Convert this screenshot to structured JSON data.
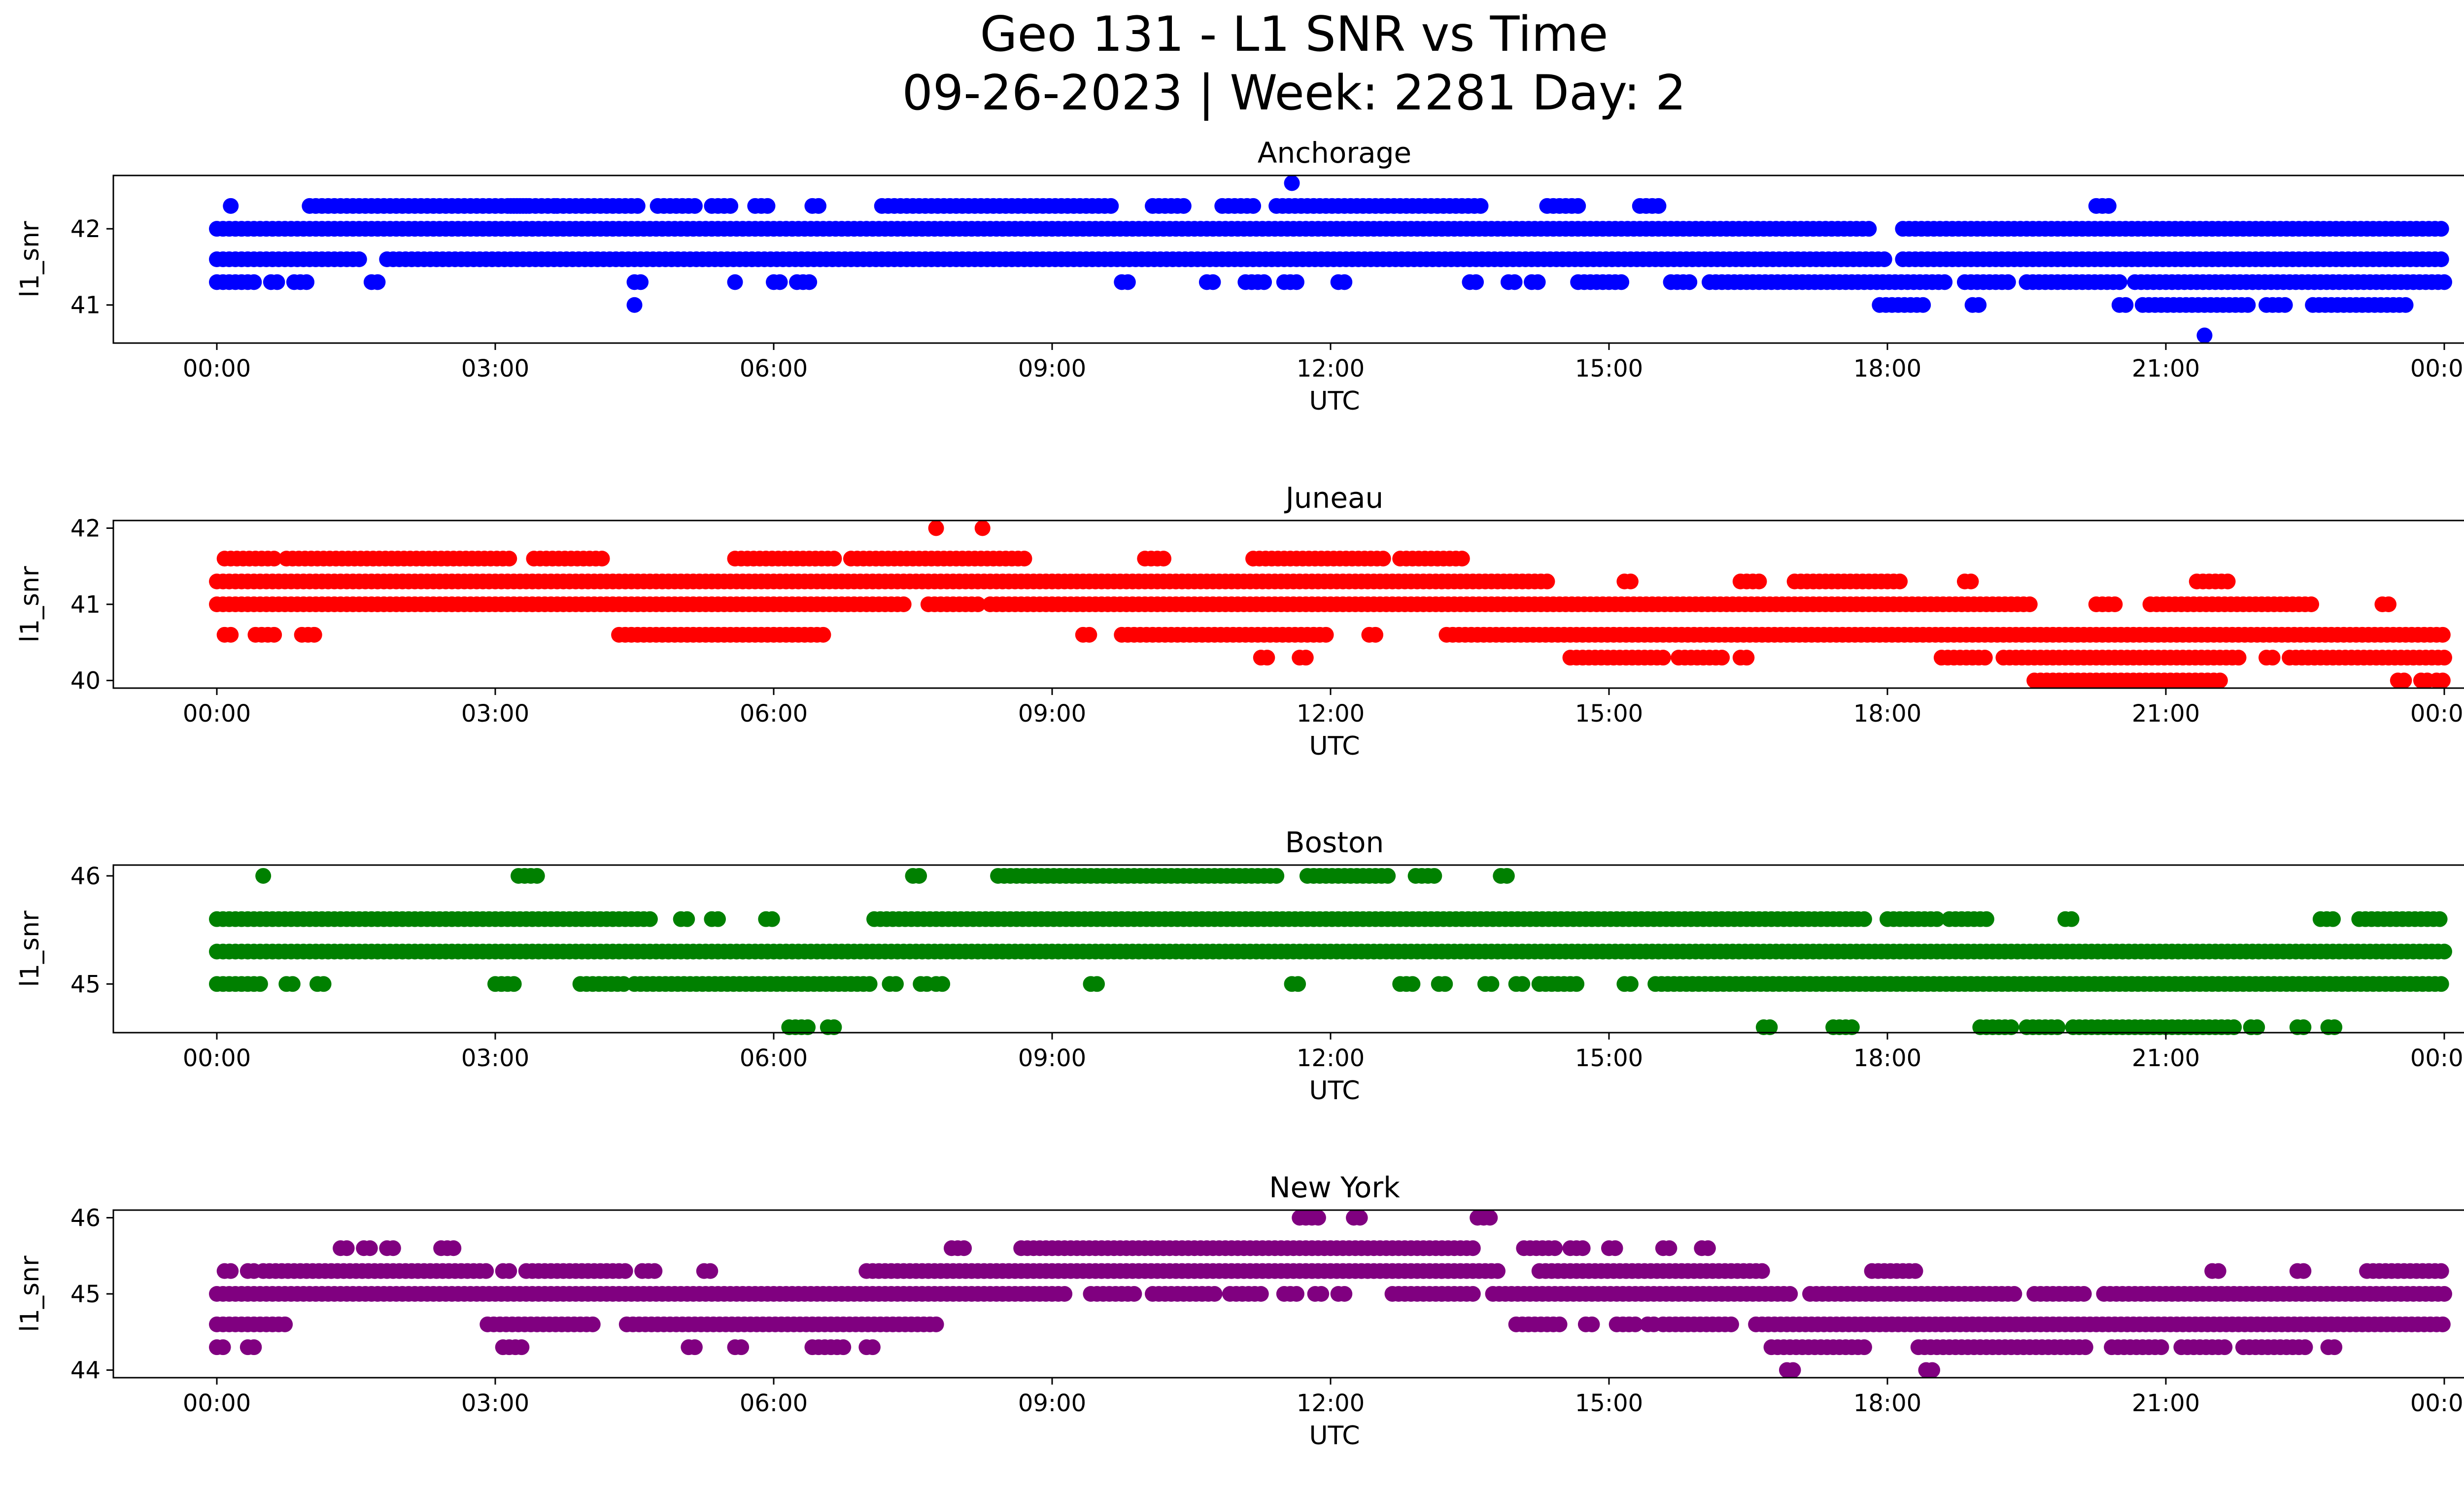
{
  "figure": {
    "title_line1": "Geo 131 - L1 SNR vs Time",
    "title_line2": "09-26-2023 | Week: 2281 Day: 2"
  },
  "chart_data": [
    {
      "type": "scatter",
      "title": "Anchorage",
      "xlabel": "UTC",
      "ylabel": "l1_snr",
      "color": "#0000ff",
      "xlim": [
        "2023-09-26 00:00",
        "2023-09-27 00:00"
      ],
      "x_ticks": [
        "00:00",
        "03:00",
        "06:00",
        "09:00",
        "12:00",
        "15:00",
        "18:00",
        "21:00",
        "00:00"
      ],
      "ylim": [
        40.5,
        42.7
      ],
      "y_ticks": [
        41,
        42
      ],
      "bands": [
        {
          "y": 42.3,
          "ranges": [
            [
              "00:09",
              "00:12"
            ],
            [
              "01:00",
              "03:20"
            ],
            [
              "03:10",
              "03:40"
            ],
            [
              "03:40",
              "04:35"
            ],
            [
              "04:45",
              "05:10"
            ],
            [
              "05:20",
              "05:35"
            ],
            [
              "05:48",
              "05:58"
            ],
            [
              "06:25",
              "06:30"
            ],
            [
              "07:10",
              "09:40"
            ],
            [
              "10:05",
              "10:25"
            ],
            [
              "10:50",
              "11:10"
            ],
            [
              "11:25",
              "13:40"
            ],
            [
              "14:20",
              "14:40"
            ],
            [
              "15:20",
              "15:35"
            ],
            [
              "20:15",
              "20:25"
            ]
          ]
        },
        {
          "y": 42.0,
          "ranges": [
            [
              "00:00",
              "17:50"
            ],
            [
              "18:10",
              "24:00"
            ]
          ]
        },
        {
          "y": 41.6,
          "ranges": [
            [
              "00:00",
              "01:35"
            ],
            [
              "01:50",
              "18:00"
            ],
            [
              "18:10",
              "24:00"
            ]
          ]
        },
        {
          "y": 41.3,
          "ranges": [
            [
              "00:00",
              "00:25"
            ],
            [
              "00:35",
              "00:40"
            ],
            [
              "00:50",
              "01:00"
            ],
            [
              "01:40",
              "01:45"
            ],
            [
              "04:30",
              "04:35"
            ],
            [
              "05:35",
              "05:38"
            ],
            [
              "06:00",
              "06:05"
            ],
            [
              "06:15",
              "06:25"
            ],
            [
              "09:45",
              "09:50"
            ],
            [
              "10:40",
              "10:45"
            ],
            [
              "11:05",
              "11:20"
            ],
            [
              "11:30",
              "11:40"
            ],
            [
              "12:05",
              "12:10"
            ],
            [
              "13:30",
              "13:35"
            ],
            [
              "13:55",
              "14:00"
            ],
            [
              "14:10",
              "14:15"
            ],
            [
              "14:40",
              "15:10"
            ],
            [
              "15:40",
              "15:55"
            ],
            [
              "16:05",
              "18:40"
            ],
            [
              "18:50",
              "19:20"
            ],
            [
              "19:30",
              "20:30"
            ],
            [
              "20:40",
              "24:00"
            ]
          ]
        },
        {
          "y": 41.0,
          "ranges": [
            [
              "04:30",
              "04:33"
            ],
            [
              "17:55",
              "18:25"
            ],
            [
              "18:55",
              "19:00"
            ],
            [
              "20:30",
              "20:35"
            ],
            [
              "20:45",
              "21:55"
            ],
            [
              "22:05",
              "22:20"
            ],
            [
              "22:35",
              "23:35"
            ]
          ]
        }
      ],
      "points": [
        {
          "x": "11:35",
          "y": 42.6
        },
        {
          "x": "21:25",
          "y": 40.6
        }
      ]
    },
    {
      "type": "scatter",
      "title": "Juneau",
      "xlabel": "UTC",
      "ylabel": "l1_snr",
      "color": "#ff0000",
      "xlim": [
        "2023-09-26 00:00",
        "2023-09-27 00:00"
      ],
      "x_ticks": [
        "00:00",
        "03:00",
        "06:00",
        "09:00",
        "12:00",
        "15:00",
        "18:00",
        "21:00",
        "00:00"
      ],
      "ylim": [
        39.9,
        42.1
      ],
      "y_ticks": [
        40,
        41,
        42
      ],
      "bands": [
        {
          "y": 41.6,
          "ranges": [
            [
              "00:05",
              "00:40"
            ],
            [
              "00:45",
              "03:10"
            ],
            [
              "03:25",
              "04:10"
            ],
            [
              "05:35",
              "06:40"
            ],
            [
              "06:50",
              "08:45"
            ],
            [
              "10:00",
              "10:15"
            ],
            [
              "11:10",
              "12:35"
            ],
            [
              "12:45",
              "13:25"
            ]
          ]
        },
        {
          "y": 41.3,
          "ranges": [
            [
              "00:00",
              "14:20"
            ],
            [
              "15:10",
              "15:15"
            ],
            [
              "16:25",
              "16:40"
            ],
            [
              "17:00",
              "18:10"
            ],
            [
              "18:50",
              "18:55"
            ],
            [
              "21:20",
              "21:40"
            ]
          ]
        },
        {
          "y": 41.0,
          "ranges": [
            [
              "00:00",
              "07:25"
            ],
            [
              "07:40",
              "08:15"
            ],
            [
              "08:20",
              "19:35"
            ],
            [
              "20:15",
              "20:30"
            ],
            [
              "20:50",
              "22:35"
            ],
            [
              "23:20",
              "23:25"
            ]
          ]
        },
        {
          "y": 40.6,
          "ranges": [
            [
              "00:05",
              "00:10"
            ],
            [
              "00:25",
              "00:40"
            ],
            [
              "00:55",
              "01:05"
            ],
            [
              "04:20",
              "06:35"
            ],
            [
              "09:20",
              "09:25"
            ],
            [
              "09:45",
              "12:00"
            ],
            [
              "12:25",
              "12:30"
            ],
            [
              "13:15",
              "24:00"
            ]
          ]
        },
        {
          "y": 40.3,
          "ranges": [
            [
              "11:15",
              "11:20"
            ],
            [
              "11:40",
              "11:45"
            ],
            [
              "14:35",
              "15:35"
            ],
            [
              "15:45",
              "16:15"
            ],
            [
              "16:25",
              "16:30"
            ],
            [
              "18:35",
              "19:05"
            ],
            [
              "19:15",
              "21:50"
            ],
            [
              "22:05",
              "22:10"
            ],
            [
              "22:20",
              "24:00"
            ]
          ]
        },
        {
          "y": 40.0,
          "ranges": [
            [
              "19:35",
              "21:35"
            ],
            [
              "23:30",
              "23:35"
            ],
            [
              "23:45",
              "23:50"
            ],
            [
              "23:55",
              "24:00"
            ]
          ]
        }
      ],
      "points": [
        {
          "x": "07:45",
          "y": 42.0
        },
        {
          "x": "08:15",
          "y": 42.0
        }
      ]
    },
    {
      "type": "scatter",
      "title": "Boston",
      "xlabel": "UTC",
      "ylabel": "l1_snr",
      "color": "#008000",
      "xlim": [
        "2023-09-26 00:00",
        "2023-09-27 00:00"
      ],
      "x_ticks": [
        "00:00",
        "03:00",
        "06:00",
        "09:00",
        "12:00",
        "15:00",
        "18:00",
        "21:00",
        "00:00"
      ],
      "ylim": [
        44.55,
        46.1
      ],
      "y_ticks": [
        45,
        46
      ],
      "bands": [
        {
          "y": 46.0,
          "ranges": [
            [
              "00:30",
              "00:32"
            ],
            [
              "03:15",
              "03:30"
            ],
            [
              "07:30",
              "07:35"
            ],
            [
              "08:25",
              "11:25"
            ],
            [
              "11:45",
              "12:40"
            ],
            [
              "12:55",
              "13:10"
            ],
            [
              "13:50",
              "13:55"
            ]
          ]
        },
        {
          "y": 45.6,
          "ranges": [
            [
              "00:00",
              "04:40"
            ],
            [
              "05:00",
              "05:05"
            ],
            [
              "05:20",
              "05:25"
            ],
            [
              "05:55",
              "06:00"
            ],
            [
              "07:05",
              "17:45"
            ],
            [
              "18:00",
              "18:35"
            ],
            [
              "18:40",
              "19:05"
            ],
            [
              "19:55",
              "20:00"
            ],
            [
              "22:40",
              "22:50"
            ],
            [
              "23:05",
              "24:00"
            ]
          ]
        },
        {
          "y": 45.3,
          "ranges": [
            [
              "00:00",
              "24:00"
            ]
          ]
        },
        {
          "y": 45.0,
          "ranges": [
            [
              "00:00",
              "00:30"
            ],
            [
              "00:45",
              "00:50"
            ],
            [
              "01:05",
              "01:10"
            ],
            [
              "03:00",
              "03:15"
            ],
            [
              "03:55",
              "04:25"
            ],
            [
              "04:30",
              "07:05"
            ],
            [
              "07:15",
              "07:20"
            ],
            [
              "07:35",
              "07:40"
            ],
            [
              "07:45",
              "07:50"
            ],
            [
              "09:25",
              "09:30"
            ],
            [
              "11:35",
              "11:40"
            ],
            [
              "12:45",
              "12:55"
            ],
            [
              "13:10",
              "13:15"
            ],
            [
              "13:40",
              "13:45"
            ],
            [
              "14:00",
              "14:05"
            ],
            [
              "14:15",
              "14:40"
            ],
            [
              "15:10",
              "15:15"
            ],
            [
              "15:30",
              "24:00"
            ]
          ]
        },
        {
          "y": 44.6,
          "ranges": [
            [
              "06:10",
              "06:25"
            ],
            [
              "06:35",
              "06:40"
            ],
            [
              "16:40",
              "16:45"
            ],
            [
              "17:25",
              "17:40"
            ],
            [
              "19:00",
              "19:20"
            ],
            [
              "19:30",
              "19:50"
            ],
            [
              "20:00",
              "21:45"
            ],
            [
              "21:55",
              "22:00"
            ],
            [
              "22:25",
              "22:30"
            ],
            [
              "22:45",
              "22:50"
            ]
          ]
        }
      ],
      "points": []
    },
    {
      "type": "scatter",
      "title": "New York",
      "xlabel": "UTC",
      "ylabel": "l1_snr",
      "color": "#800080",
      "xlim": [
        "2023-09-26 00:00",
        "2023-09-27 00:00"
      ],
      "x_ticks": [
        "00:00",
        "03:00",
        "06:00",
        "09:00",
        "12:00",
        "15:00",
        "18:00",
        "21:00",
        "00:00"
      ],
      "ylim": [
        43.9,
        46.1
      ],
      "y_ticks": [
        44,
        45,
        46
      ],
      "bands": [
        {
          "y": 46.0,
          "ranges": [
            [
              "11:40",
              "11:55"
            ],
            [
              "12:15",
              "12:20"
            ],
            [
              "13:35",
              "13:45"
            ]
          ]
        },
        {
          "y": 45.6,
          "ranges": [
            [
              "01:20",
              "01:25"
            ],
            [
              "01:35",
              "01:40"
            ],
            [
              "01:50",
              "01:55"
            ],
            [
              "02:25",
              "02:35"
            ],
            [
              "07:55",
              "08:05"
            ],
            [
              "08:40",
              "13:35"
            ],
            [
              "14:05",
              "14:25"
            ],
            [
              "14:35",
              "14:45"
            ],
            [
              "15:00",
              "15:05"
            ],
            [
              "15:35",
              "15:40"
            ],
            [
              "16:00",
              "16:05"
            ]
          ]
        },
        {
          "y": 45.3,
          "ranges": [
            [
              "00:05",
              "00:10"
            ],
            [
              "00:20",
              "00:25"
            ],
            [
              "00:30",
              "02:55"
            ],
            [
              "03:05",
              "03:10"
            ],
            [
              "03:20",
              "04:25"
            ],
            [
              "04:35",
              "04:45"
            ],
            [
              "05:15",
              "05:20"
            ],
            [
              "07:00",
              "13:50"
            ],
            [
              "14:15",
              "16:40"
            ],
            [
              "17:50",
              "18:20"
            ],
            [
              "21:30",
              "21:35"
            ],
            [
              "22:25",
              "22:30"
            ],
            [
              "23:10",
              "24:00"
            ]
          ]
        },
        {
          "y": 45.0,
          "ranges": [
            [
              "00:00",
              "09:10"
            ],
            [
              "09:25",
              "09:55"
            ],
            [
              "10:05",
              "10:45"
            ],
            [
              "10:55",
              "11:15"
            ],
            [
              "11:30",
              "11:40"
            ],
            [
              "11:50",
              "11:55"
            ],
            [
              "12:05",
              "12:10"
            ],
            [
              "12:40",
              "13:35"
            ],
            [
              "13:45",
              "17:00"
            ],
            [
              "17:10",
              "19:25"
            ],
            [
              "19:35",
              "20:10"
            ],
            [
              "20:20",
              "24:00"
            ]
          ]
        },
        {
          "y": 44.6,
          "ranges": [
            [
              "00:00",
              "00:45"
            ],
            [
              "02:55",
              "04:05"
            ],
            [
              "04:25",
              "07:45"
            ],
            [
              "14:00",
              "14:30"
            ],
            [
              "14:45",
              "14:50"
            ],
            [
              "15:05",
              "15:20"
            ],
            [
              "15:25",
              "15:30"
            ],
            [
              "15:35",
              "16:20"
            ],
            [
              "16:35",
              "24:00"
            ]
          ]
        },
        {
          "y": 44.3,
          "ranges": [
            [
              "00:00",
              "00:05"
            ],
            [
              "00:20",
              "00:25"
            ],
            [
              "03:05",
              "03:20"
            ],
            [
              "05:05",
              "05:10"
            ],
            [
              "05:35",
              "05:40"
            ],
            [
              "06:25",
              "06:45"
            ],
            [
              "07:00",
              "07:05"
            ],
            [
              "16:45",
              "17:45"
            ],
            [
              "18:20",
              "20:10"
            ],
            [
              "20:25",
              "21:00"
            ],
            [
              "21:10",
              "21:40"
            ],
            [
              "21:50",
              "22:30"
            ],
            [
              "22:45",
              "22:50"
            ]
          ]
        },
        {
          "y": 44.0,
          "ranges": [
            [
              "16:55",
              "17:00"
            ],
            [
              "18:25",
              "18:30"
            ]
          ]
        }
      ],
      "points": []
    }
  ]
}
